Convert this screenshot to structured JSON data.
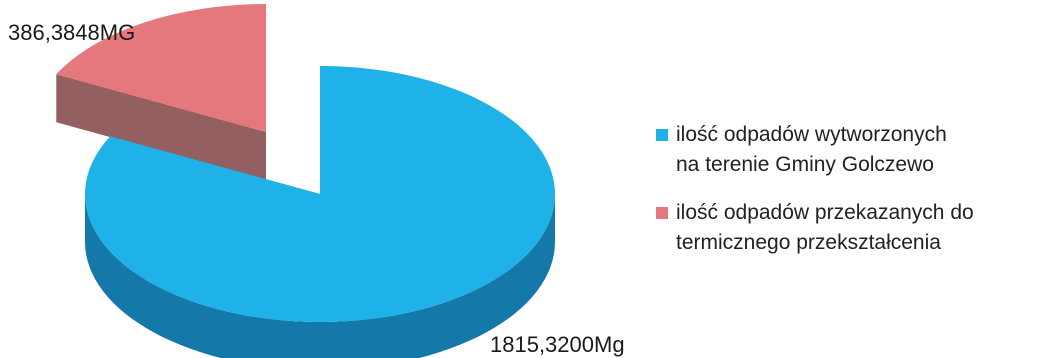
{
  "chart_data": {
    "type": "pie",
    "style": "3d-exploded",
    "title": "",
    "slices": [
      {
        "label": "ilość odpadów wytworzonych na terenie Gminy Golczewo",
        "legend_lines": [
          "ilość odpadów wytworzonych",
          "na terenie Gminy Golczewo"
        ],
        "value": 1815.32,
        "data_label": "1815,3200Mg",
        "color": "#1fb2e8",
        "side_color": "#1479a8"
      },
      {
        "label": "ilość odpadów przekazanych do termicznego przekształcenia",
        "legend_lines": [
          "ilość odpadów przekazanych do",
          "termicznego przekształcenia"
        ],
        "value": 386.3848,
        "data_label": "386,3848MG",
        "color": "#e4787d",
        "side_color": "#8e5658"
      }
    ],
    "legend_position": "right"
  }
}
